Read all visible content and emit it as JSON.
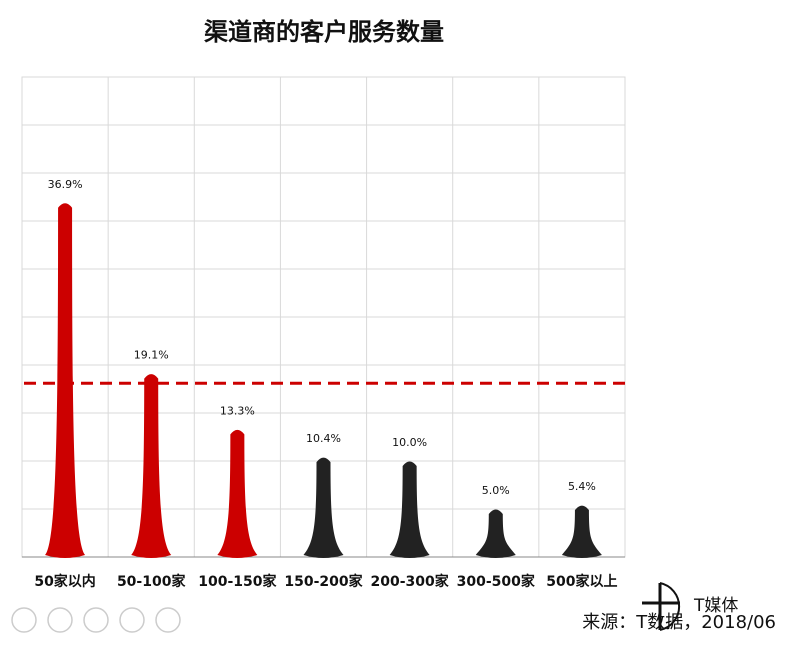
{
  "chart_data": {
    "type": "spike",
    "title": "渠道商的客户服务数量",
    "categories": [
      "50家以内",
      "50-100家",
      "100-150家",
      "150-200家",
      "200-300家",
      "300-500家",
      "500家以上"
    ],
    "values": [
      36.9,
      19.1,
      13.3,
      10.4,
      10.0,
      5.0,
      5.4
    ],
    "value_labels": [
      "36.9%",
      "19.1%",
      "13.3%",
      "10.4%",
      "10.0%",
      "5.0%",
      "5.4%"
    ],
    "colors": [
      "#cc0000",
      "#cc0000",
      "#cc0000",
      "#222222",
      "#222222",
      "#222222",
      "#222222"
    ],
    "ylim": [
      0,
      50
    ],
    "yticks": [
      0,
      5,
      10,
      15,
      20,
      25,
      30,
      35,
      40,
      45,
      50
    ],
    "grid": true,
    "reference_line": 18.1,
    "reference_color": "#cc0000",
    "source": "来源：T数据，2018/06",
    "logo": "T媒体"
  }
}
